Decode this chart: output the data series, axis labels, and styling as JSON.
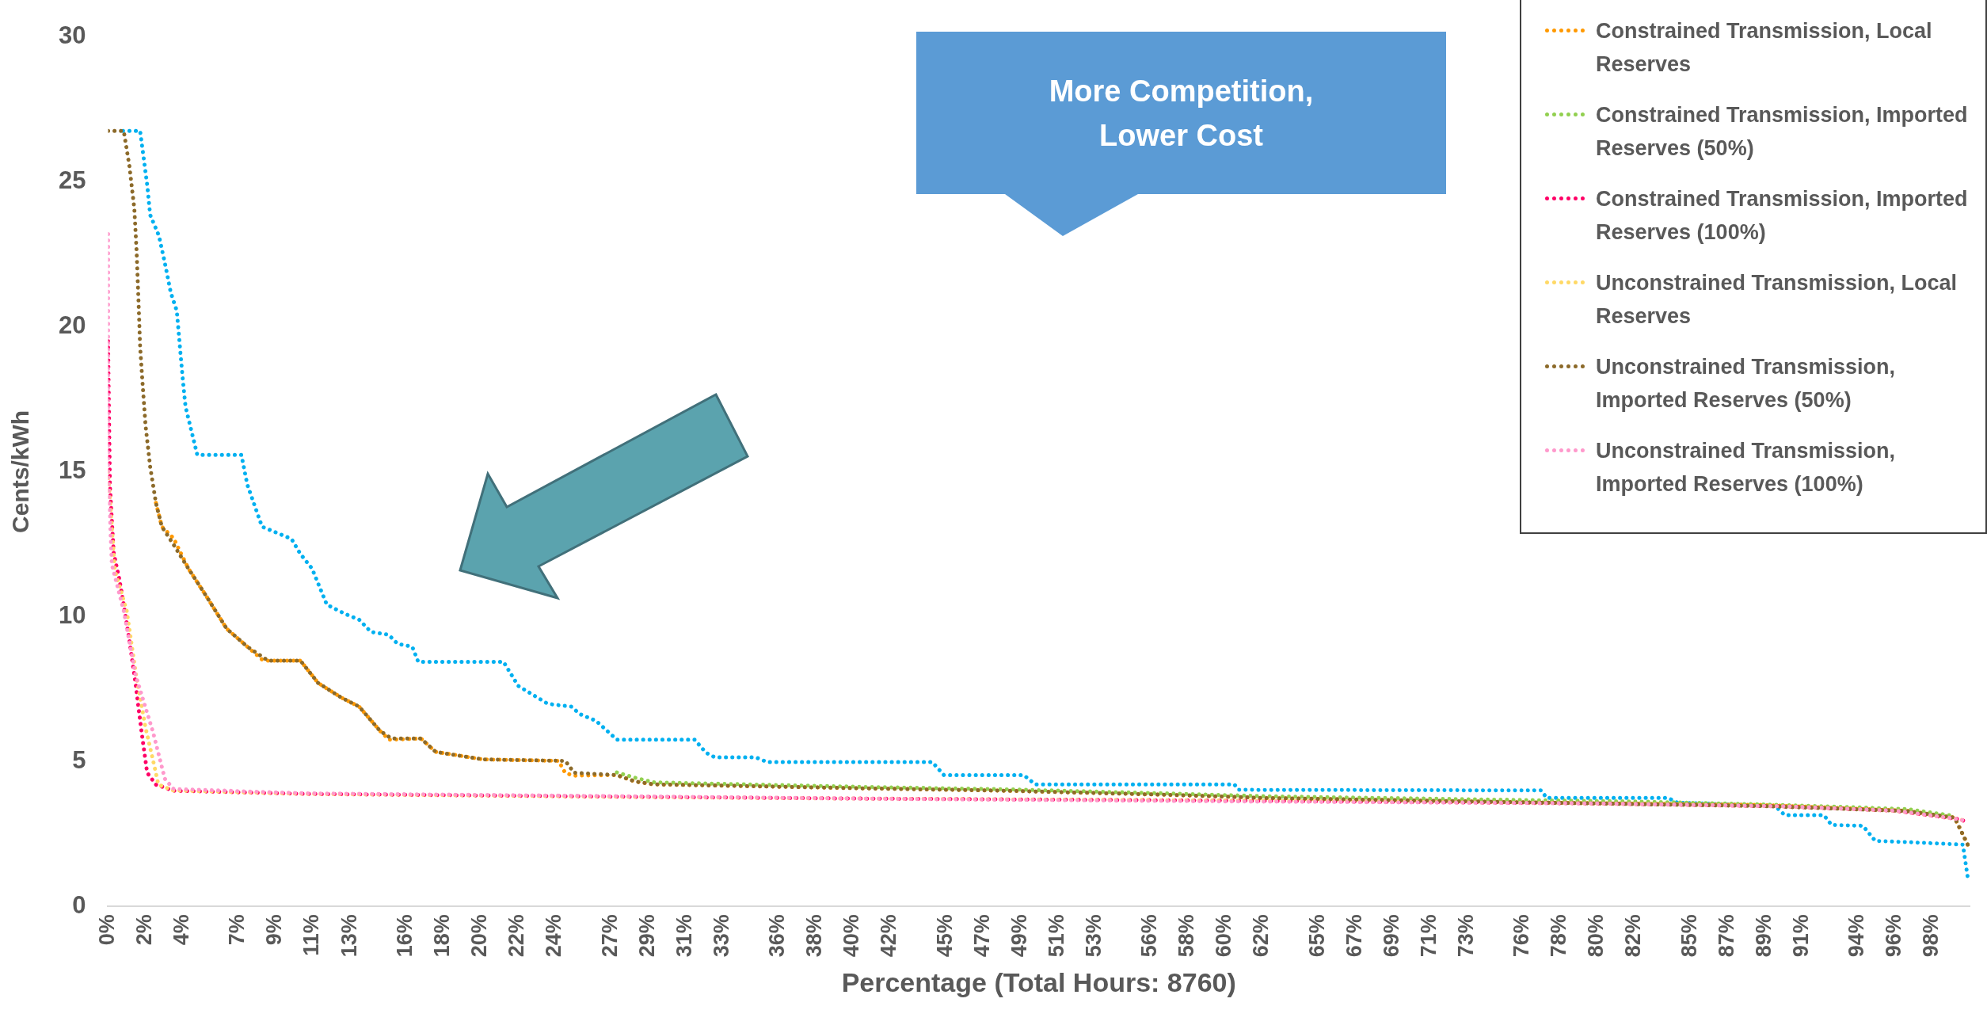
{
  "chart_data": {
    "type": "line",
    "xlabel": "Percentage (Total Hours: 8760)",
    "ylabel": "Cents/kWh",
    "annotations": [
      "More Competition, Lower Cost"
    ],
    "xlim": [
      0,
      100
    ],
    "xticks": [
      {
        "value": 0,
        "label": "0%"
      },
      {
        "value": 2,
        "label": "2%"
      },
      {
        "value": 4,
        "label": "4%"
      },
      {
        "value": 7,
        "label": "7%"
      },
      {
        "value": 9,
        "label": "9%"
      },
      {
        "value": 11,
        "label": "11%"
      },
      {
        "value": 13,
        "label": "13%"
      },
      {
        "value": 16,
        "label": "16%"
      },
      {
        "value": 18,
        "label": "18%"
      },
      {
        "value": 20,
        "label": "20%"
      },
      {
        "value": 22,
        "label": "22%"
      },
      {
        "value": 24,
        "label": "24%"
      },
      {
        "value": 27,
        "label": "27%"
      },
      {
        "value": 29,
        "label": "29%"
      },
      {
        "value": 31,
        "label": "31%"
      },
      {
        "value": 33,
        "label": "33%"
      },
      {
        "value": 36,
        "label": "36%"
      },
      {
        "value": 38,
        "label": "38%"
      },
      {
        "value": 40,
        "label": "40%"
      },
      {
        "value": 42,
        "label": "42%"
      },
      {
        "value": 45,
        "label": "45%"
      },
      {
        "value": 47,
        "label": "47%"
      },
      {
        "value": 49,
        "label": "49%"
      },
      {
        "value": 51,
        "label": "51%"
      },
      {
        "value": 53,
        "label": "53%"
      },
      {
        "value": 56,
        "label": "56%"
      },
      {
        "value": 58,
        "label": "58%"
      },
      {
        "value": 60,
        "label": "60%"
      },
      {
        "value": 62,
        "label": "62%"
      },
      {
        "value": 65,
        "label": "65%"
      },
      {
        "value": 67,
        "label": "67%"
      },
      {
        "value": 69,
        "label": "69%"
      },
      {
        "value": 71,
        "label": "71%"
      },
      {
        "value": 73,
        "label": "73%"
      },
      {
        "value": 76,
        "label": "76%"
      },
      {
        "value": 78,
        "label": "78%"
      },
      {
        "value": 80,
        "label": "80%"
      },
      {
        "value": 82,
        "label": "82%"
      },
      {
        "value": 85,
        "label": "85%"
      },
      {
        "value": 87,
        "label": "87%"
      },
      {
        "value": 89,
        "label": "89%"
      },
      {
        "value": 91,
        "label": "91%"
      },
      {
        "value": 94,
        "label": "94%"
      },
      {
        "value": 96,
        "label": "96%"
      },
      {
        "value": 98,
        "label": "98%"
      }
    ],
    "ylim": [
      0,
      30
    ],
    "yticks": [
      0,
      5,
      10,
      15,
      20,
      25,
      30
    ],
    "grid": false,
    "legend": "top right",
    "marker": "none",
    "line_style": "dotted",
    "series": [
      {
        "color": "#00b0f0",
        "x": [
          0.8,
          1.72,
          2.1,
          2.26,
          2.73,
          3.05,
          3.37,
          3.69,
          4.0,
          4.16,
          4.79,
          7.16,
          7.48,
          8.27,
          9.06,
          9.85,
          10.33,
          10.96,
          11.75,
          12.7,
          13.49,
          14.12,
          15.07,
          15.55,
          16.34,
          16.66,
          21.24,
          22.03,
          23.61,
          24.88,
          25.36,
          26.22,
          27.33,
          31.51,
          32.12,
          32.6,
          34.8,
          35.4,
          44.27,
          44.9,
          49.19,
          49.8,
          60.5,
          60.73,
          77.0,
          77.27,
          83.8,
          84.3,
          89.56,
          90.07,
          92.17,
          92.58,
          94.27,
          94.93,
          96.9,
          99.64,
          99.9
        ],
        "values": [
          26.76,
          26.76,
          24.9,
          23.86,
          23.14,
          22.2,
          21.17,
          20.55,
          18.27,
          17.24,
          15.58,
          15.58,
          14.55,
          13.1,
          12.89,
          12.68,
          12.16,
          11.65,
          10.41,
          10.1,
          9.89,
          9.47,
          9.37,
          9.06,
          8.96,
          8.44,
          8.44,
          7.61,
          6.99,
          6.89,
          6.63,
          6.4,
          5.75,
          5.75,
          5.3,
          5.14,
          5.14,
          4.98,
          4.98,
          4.53,
          4.53,
          4.21,
          4.21,
          4.02,
          4.0,
          3.74,
          3.74,
          3.58,
          3.46,
          3.15,
          3.15,
          2.81,
          2.78,
          2.26,
          2.21,
          2.13,
          1.0
        ]
      },
      {
        "name": "Constrained Transmission, Local Reserves",
        "color": "#ff9900",
        "x": [
          2.57,
          2.89,
          3.52,
          4.32,
          5.27,
          6.37,
          7.48,
          8.3,
          8.59,
          10.33,
          11.28,
          12.54,
          13.49,
          14.6,
          15.1,
          16.81,
          17.6,
          20.14,
          24.2,
          24.56,
          25.04,
          27.33,
          28.3,
          29.3,
          40.8,
          48.2,
          58.0,
          62.1,
          77.0,
          88.8,
          96.6,
          99.2,
          99.9
        ],
        "values": [
          13.92,
          13.1,
          12.7,
          11.65,
          10.71,
          9.58,
          8.96,
          8.5,
          8.48,
          8.48,
          7.71,
          7.2,
          6.89,
          6.06,
          5.75,
          5.79,
          5.33,
          5.07,
          5.02,
          4.6,
          4.51,
          4.53,
          4.31,
          4.21,
          4.07,
          3.99,
          3.83,
          3.74,
          3.58,
          3.5,
          3.3,
          3.06,
          2.13
        ]
      },
      {
        "name": "Constrained Transmission, Imported Reserves (50%)",
        "color": "#92d050",
        "x": [
          27.33,
          28.3,
          29.3,
          40.8,
          48.2,
          58.0,
          62.1,
          77.0,
          82.0,
          88.8,
          96.6,
          99.2
        ],
        "values": [
          4.62,
          4.44,
          4.28,
          4.12,
          4.04,
          3.88,
          3.8,
          3.66,
          3.62,
          3.52,
          3.36,
          3.12
        ]
      },
      {
        "name": "Constrained Transmission, Imported Reserves (100%)",
        "color": "#ff0066",
        "x": [
          0,
          0.1,
          0.3,
          0.6,
          0.84,
          1.15,
          1.47,
          1.79,
          2.1,
          2.57,
          3.52,
          10.65,
          27.92,
          40.0,
          60.0,
          80.0,
          90.0,
          96.0,
          99.5,
          99.9
        ],
        "values": [
          19.5,
          14.5,
          12.2,
          11.3,
          10.41,
          9.16,
          7.71,
          6.06,
          4.61,
          4.2,
          3.99,
          3.88,
          3.78,
          3.72,
          3.65,
          3.55,
          3.45,
          3.3,
          3.0,
          2.9
        ]
      },
      {
        "name": "Unconstrained Transmission, Local Reserves",
        "color": "#ffd966",
        "x": [
          0,
          0.36,
          1.0,
          1.5,
          2.0,
          2.5,
          2.7,
          3.5,
          10.65,
          27.92,
          40.0,
          60.0,
          80.0,
          90.0,
          96.0,
          99.5,
          99.9
        ],
        "values": [
          15.0,
          11.6,
          10.2,
          8.0,
          6.2,
          4.8,
          4.2,
          4.0,
          3.88,
          3.78,
          3.72,
          3.65,
          3.55,
          3.45,
          3.3,
          3.0,
          2.9
        ]
      },
      {
        "name": "Unconstrained Transmission, Imported Reserves (50%)",
        "color": "#8c6a2a",
        "x": [
          0,
          0.84,
          1.15,
          1.41,
          1.53,
          1.63,
          1.72,
          1.85,
          2.01,
          2.26,
          2.57,
          2.89,
          3.52,
          4.32,
          5.27,
          6.37,
          7.48,
          8.59,
          10.33,
          11.28,
          12.54,
          13.49,
          14.6,
          15.23,
          16.81,
          17.6,
          20.14,
          24.56,
          25.04,
          27.33,
          28.3,
          29.3,
          40.8,
          48.2,
          58.0,
          62.1,
          77.0,
          88.8,
          96.6,
          99.2,
          99.9
        ],
        "values": [
          26.76,
          26.76,
          25.52,
          24.07,
          22.62,
          20.96,
          19.31,
          18.06,
          16.61,
          15.17,
          13.92,
          13.1,
          12.48,
          11.65,
          10.71,
          9.58,
          8.96,
          8.48,
          8.48,
          7.71,
          7.2,
          6.89,
          6.06,
          5.79,
          5.79,
          5.33,
          5.07,
          5.02,
          4.61,
          4.53,
          4.31,
          4.21,
          4.07,
          3.99,
          3.83,
          3.74,
          3.58,
          3.46,
          3.29,
          3.06,
          2.13
        ]
      },
      {
        "name": "Unconstrained Transmission, Imported Reserves (100%)",
        "color": "#ff99cc",
        "x": [
          0,
          0,
          0.2,
          0.84,
          1.47,
          2.42,
          3.05,
          3.52,
          10.65,
          27.92,
          40.0,
          60.0,
          80.0,
          90.0,
          96.0,
          99.5,
          99.9
        ],
        "values": [
          23.2,
          14.96,
          11.8,
          10.2,
          8.0,
          6.0,
          4.4,
          4.05,
          3.9,
          3.8,
          3.72,
          3.62,
          3.55,
          3.45,
          3.3,
          3.0,
          2.9
        ]
      }
    ]
  }
}
